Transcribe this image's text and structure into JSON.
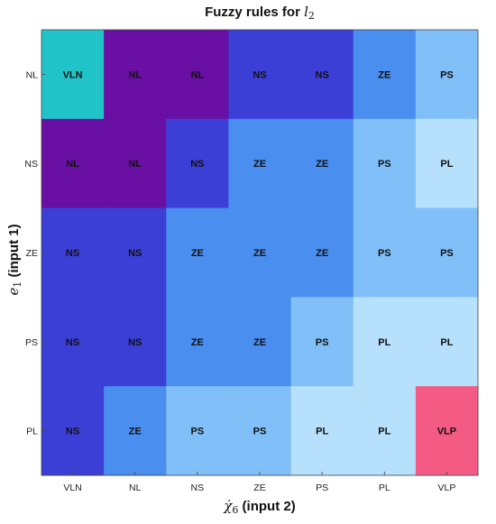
{
  "chart_data": {
    "type": "heatmap",
    "title": "Fuzzy rules for l2",
    "title_symbol": "l",
    "title_subscript": "2",
    "title_prefix": "Fuzzy rules for ",
    "xlabel_symbol": "χ̇",
    "xlabel_subscript": "6",
    "xlabel_suffix": " (input 2)",
    "ylabel_symbol": "e",
    "ylabel_subscript": "1",
    "ylabel_suffix": " (input 1)",
    "x_categories": [
      "VLN",
      "NL",
      "NS",
      "ZE",
      "PS",
      "PL",
      "VLP"
    ],
    "y_categories": [
      "NL",
      "NS",
      "ZE",
      "PS",
      "PL"
    ],
    "cells": [
      [
        "VLN",
        "NL",
        "NL",
        "NS",
        "NS",
        "ZE",
        "PS"
      ],
      [
        "NL",
        "NL",
        "NS",
        "ZE",
        "ZE",
        "PS",
        "PL"
      ],
      [
        "NS",
        "NS",
        "ZE",
        "ZE",
        "ZE",
        "PS",
        "PS"
      ],
      [
        "NS",
        "NS",
        "ZE",
        "ZE",
        "PS",
        "PL",
        "PL"
      ],
      [
        "NS",
        "ZE",
        "PS",
        "PS",
        "PL",
        "PL",
        "VLP"
      ]
    ],
    "colors": {
      "VLN": "#20c4c8",
      "NL": "#6a0fa3",
      "NS": "#3b3fd6",
      "ZE": "#4a8ef0",
      "PS": "#80bff7",
      "PL": "#b6e0fb",
      "VLP": "#f35b85"
    }
  }
}
